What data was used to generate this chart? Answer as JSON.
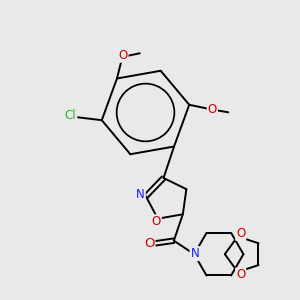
{
  "background_color": "#e9e9e9",
  "bond_color": "#000000",
  "atom_colors": {
    "N": "#1a1aff",
    "O": "#cc0000",
    "Cl": "#22bb22"
  },
  "lw": 1.4,
  "figsize": [
    3.0,
    3.0
  ],
  "dpi": 100,
  "fs": 8.5
}
